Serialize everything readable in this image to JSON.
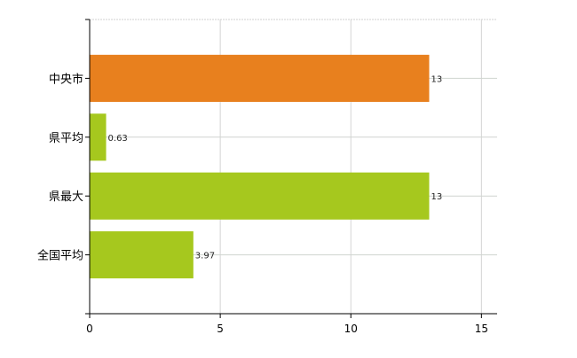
{
  "chart_data": {
    "type": "bar",
    "orientation": "horizontal",
    "title": "",
    "xlabel": "",
    "ylabel": "",
    "categories": [
      "中央市",
      "県平均",
      "県最大",
      "全国平均"
    ],
    "values": [
      13,
      0.63,
      13,
      3.97
    ],
    "data_labels": [
      "13",
      "0.63",
      "13",
      "3.97"
    ],
    "bar_colors": [
      "#e8801e",
      "#a6c81e",
      "#a6c81e",
      "#a6c81e"
    ],
    "xlim": [
      0,
      15.6
    ],
    "xticks": [
      0,
      5,
      10,
      15
    ],
    "xtick_labels": [
      "0",
      "5",
      "10",
      "15"
    ],
    "grid": true,
    "legend": "none"
  }
}
